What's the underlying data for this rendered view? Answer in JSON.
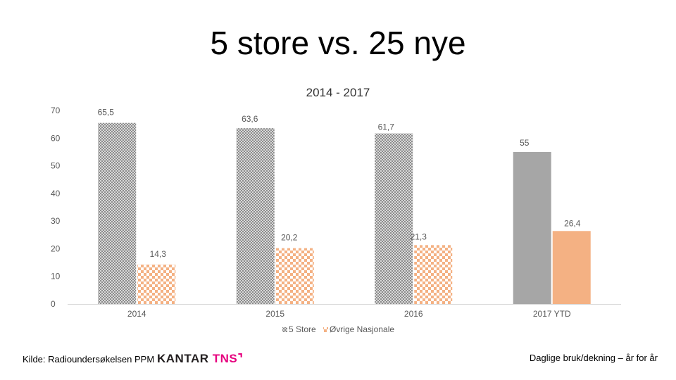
{
  "slide": {
    "title": "5 store vs. 25 nye",
    "source": "Kilde: Radioundersøkelsen PPM",
    "footnote": "Daglige bruk/dekning – år for år"
  },
  "logo": {
    "brand": "KANTAR",
    "suffix": "TNS",
    "mark": "⌝"
  },
  "colors": {
    "store_pattern_dark": "#8c8c8c",
    "store_pattern_light": "#d9d9d9",
    "store_solid": "#a6a6a6",
    "nye_pattern": "#f4b183",
    "nye_solid": "#f4b183",
    "axis": "#d9d9d9",
    "text": "#595959"
  },
  "chart_data": {
    "type": "bar",
    "title": "2014 - 2017",
    "categories": [
      "2014",
      "2015",
      "2016",
      "2017 YTD"
    ],
    "series": [
      {
        "name": "5 Store",
        "values": [
          65.5,
          63.6,
          61.7,
          55
        ],
        "labels": [
          "65,5",
          "63,6",
          "61,7",
          "55"
        ]
      },
      {
        "name": "Øvrige Nasjonale",
        "values": [
          14.3,
          20.2,
          21.3,
          26.4
        ],
        "labels": [
          "14,3",
          "20,2",
          "21,3",
          "26,4"
        ]
      }
    ],
    "ylim": [
      0,
      70
    ],
    "yticks": [
      0,
      10,
      20,
      30,
      40,
      50,
      60,
      70
    ],
    "legend": "bottom",
    "grid": false
  }
}
